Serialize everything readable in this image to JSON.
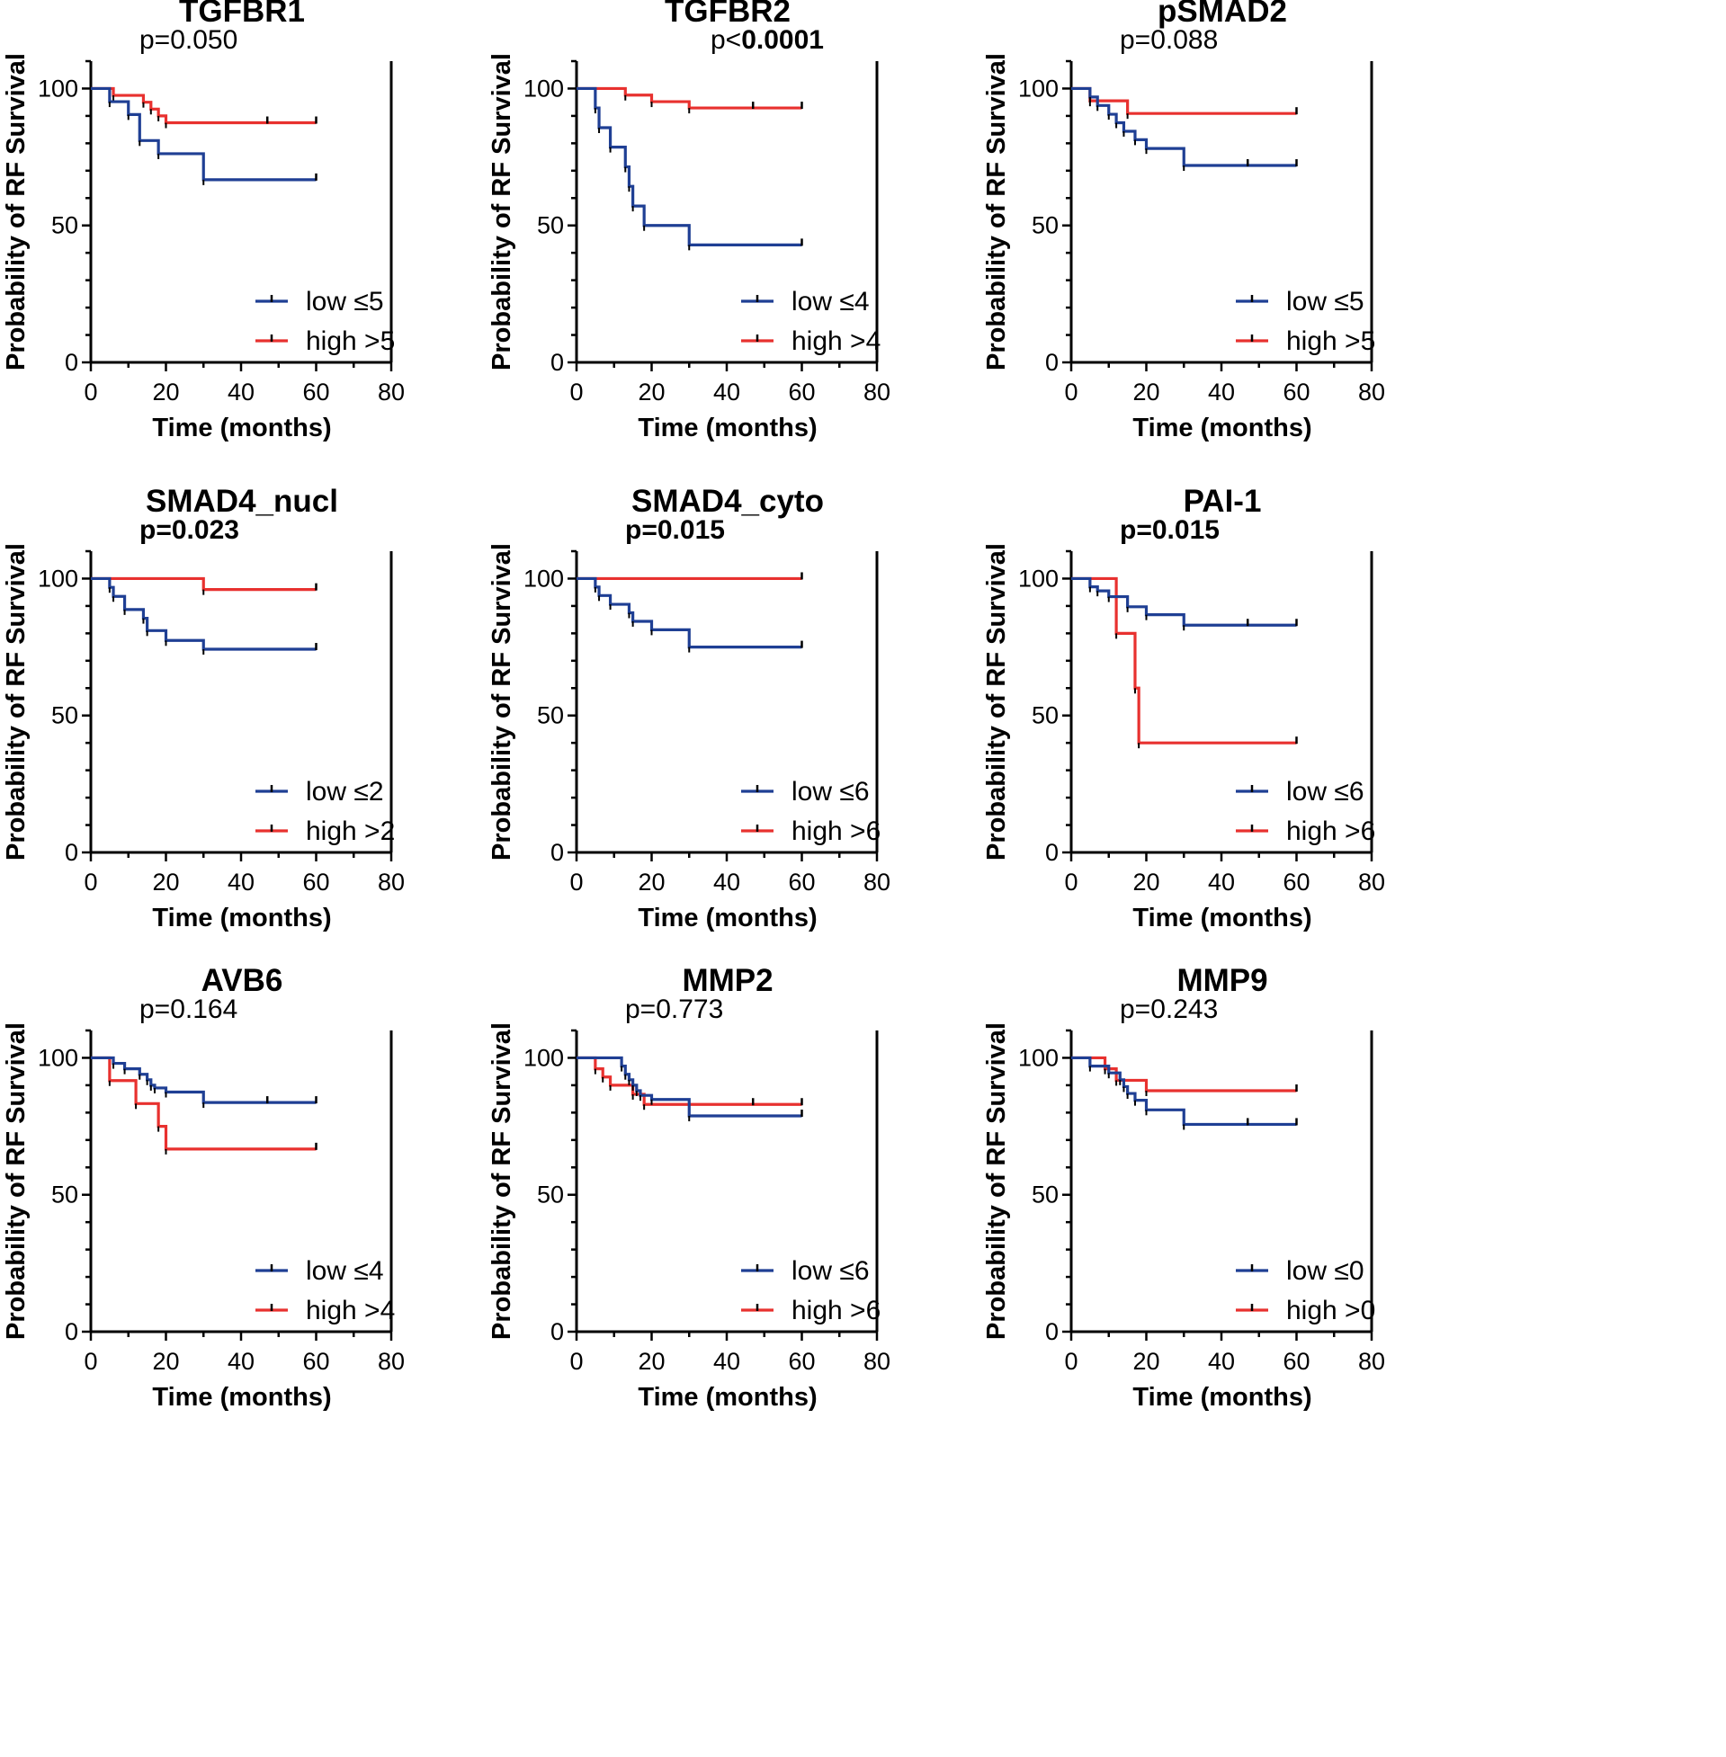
{
  "figure": {
    "x_axis_label": "Time (months)",
    "y_axis_label": "Probability of RF Survival"
  },
  "colors": {
    "low": "#1f3f94",
    "high": "#e8312f",
    "axis": "#000000"
  },
  "chart_data": [
    {
      "type": "line",
      "subtype": "kaplan-meier",
      "title": "TGFBR1",
      "pvalue": {
        "prefix": "p=",
        "value": "0.050",
        "bold": false
      },
      "xlabel": "Time (months)",
      "ylabel": "Probability of RF Survival",
      "xlim": [
        0,
        80
      ],
      "ylim": [
        0,
        110
      ],
      "xticks": [
        0,
        20,
        40,
        60,
        80
      ],
      "yticks": [
        0,
        50,
        100
      ],
      "series": [
        {
          "name": "low ≤5",
          "color": "#1f3f94",
          "x": [
            0,
            5,
            10,
            13,
            18,
            30,
            60
          ],
          "y": [
            100,
            95.2,
            90.5,
            81,
            76.2,
            66.7,
            66.7
          ],
          "censored": [
            60
          ]
        },
        {
          "name": "high >5",
          "color": "#e8312f",
          "x": [
            0,
            6,
            14,
            16,
            18,
            20,
            60
          ],
          "y": [
            100,
            97.5,
            95,
            92.5,
            90,
            87.5,
            87.5
          ],
          "censored": [
            47,
            60
          ]
        }
      ]
    },
    {
      "type": "line",
      "subtype": "kaplan-meier",
      "title": "TGFBR2",
      "pvalue": {
        "prefix": "p<",
        "value": "0.0001",
        "bold": true
      },
      "xlabel": "Time (months)",
      "ylabel": "Probability of RF Survival",
      "xlim": [
        0,
        80
      ],
      "ylim": [
        0,
        110
      ],
      "xticks": [
        0,
        20,
        40,
        60,
        80
      ],
      "yticks": [
        0,
        50,
        100
      ],
      "series": [
        {
          "name": "low ≤4",
          "color": "#1f3f94",
          "x": [
            0,
            5,
            6,
            9,
            13,
            14,
            15,
            18,
            30,
            60
          ],
          "y": [
            100,
            92.9,
            85.7,
            78.6,
            71.4,
            64.3,
            57.1,
            50,
            42.9,
            42.9
          ],
          "censored": [
            60
          ]
        },
        {
          "name": "high >4",
          "color": "#e8312f",
          "x": [
            0,
            13,
            20,
            30,
            60
          ],
          "y": [
            100,
            97.6,
            95.2,
            92.9,
            92.9
          ],
          "censored": [
            47,
            60
          ]
        }
      ]
    },
    {
      "type": "line",
      "subtype": "kaplan-meier",
      "title": "pSMAD2",
      "pvalue": {
        "prefix": "p=",
        "value": "0.088",
        "bold": false
      },
      "xlabel": "Time (months)",
      "ylabel": "Probability of RF Survival",
      "xlim": [
        0,
        80
      ],
      "ylim": [
        0,
        110
      ],
      "xticks": [
        0,
        20,
        40,
        60,
        80
      ],
      "yticks": [
        0,
        50,
        100
      ],
      "series": [
        {
          "name": "low ≤5",
          "color": "#1f3f94",
          "x": [
            0,
            5,
            7,
            10,
            12,
            14,
            17,
            20,
            30,
            60
          ],
          "y": [
            100,
            96.9,
            93.8,
            90.6,
            87.5,
            84.4,
            81.3,
            78.1,
            71.9,
            71.9
          ],
          "censored": [
            47,
            60
          ]
        },
        {
          "name": "high >5",
          "color": "#e8312f",
          "x": [
            0,
            5,
            15,
            60
          ],
          "y": [
            100,
            95.5,
            90.9,
            90.9
          ],
          "censored": [
            60
          ]
        }
      ]
    },
    {
      "type": "line",
      "subtype": "kaplan-meier",
      "title": "SMAD4_nucl",
      "pvalue": {
        "prefix": "p=",
        "value": "0.023",
        "bold": true
      },
      "xlabel": "Time (months)",
      "ylabel": "Probability of RF Survival",
      "xlim": [
        0,
        80
      ],
      "ylim": [
        0,
        110
      ],
      "xticks": [
        0,
        20,
        40,
        60,
        80
      ],
      "yticks": [
        0,
        50,
        100
      ],
      "series": [
        {
          "name": "low ≤2",
          "color": "#1f3f94",
          "x": [
            0,
            5,
            6,
            9,
            14,
            15,
            20,
            30,
            60
          ],
          "y": [
            100,
            96.8,
            93.5,
            88.7,
            85.5,
            81,
            77.4,
            74.2,
            74.2
          ],
          "censored": [
            60
          ]
        },
        {
          "name": "high >2",
          "color": "#e8312f",
          "x": [
            0,
            30,
            60
          ],
          "y": [
            100,
            96,
            96
          ],
          "censored": [
            60
          ]
        }
      ]
    },
    {
      "type": "line",
      "subtype": "kaplan-meier",
      "title": "SMAD4_cyto",
      "pvalue": {
        "prefix": "p=",
        "value": "0.015",
        "bold": true
      },
      "xlabel": "Time (months)",
      "ylabel": "Probability of RF Survival",
      "xlim": [
        0,
        80
      ],
      "ylim": [
        0,
        110
      ],
      "xticks": [
        0,
        20,
        40,
        60,
        80
      ],
      "yticks": [
        0,
        50,
        100
      ],
      "series": [
        {
          "name": "low ≤6",
          "color": "#1f3f94",
          "x": [
            0,
            5,
            6,
            9,
            14,
            15,
            20,
            30,
            60
          ],
          "y": [
            100,
            96.9,
            93.8,
            90.6,
            87.5,
            84.4,
            81.3,
            75,
            75
          ],
          "censored": [
            60
          ]
        },
        {
          "name": "high >6",
          "color": "#e8312f",
          "x": [
            0,
            60
          ],
          "y": [
            100,
            100
          ],
          "censored": [
            60
          ]
        }
      ]
    },
    {
      "type": "line",
      "subtype": "kaplan-meier",
      "title": "PAI-1",
      "pvalue": {
        "prefix": "p=",
        "value": "0.015",
        "bold": true
      },
      "xlabel": "Time (months)",
      "ylabel": "Probability of RF Survival",
      "xlim": [
        0,
        80
      ],
      "ylim": [
        0,
        110
      ],
      "xticks": [
        0,
        20,
        40,
        60,
        80
      ],
      "yticks": [
        0,
        50,
        100
      ],
      "series": [
        {
          "name": "low ≤6",
          "color": "#1f3f94",
          "x": [
            0,
            5,
            7,
            10,
            15,
            20,
            30,
            60
          ],
          "y": [
            100,
            97,
            95.5,
            93.4,
            89.7,
            86.8,
            83,
            83
          ],
          "censored": [
            47,
            60
          ]
        },
        {
          "name": "high >6",
          "color": "#e8312f",
          "x": [
            0,
            12,
            17,
            18,
            60
          ],
          "y": [
            100,
            80,
            60,
            40,
            40
          ],
          "censored": [
            60
          ]
        }
      ]
    },
    {
      "type": "line",
      "subtype": "kaplan-meier",
      "title": "AVB6",
      "pvalue": {
        "prefix": "p=",
        "value": "0.164",
        "bold": false
      },
      "xlabel": "Time (months)",
      "ylabel": "Probability of RF Survival",
      "xlim": [
        0,
        80
      ],
      "ylim": [
        0,
        110
      ],
      "xticks": [
        0,
        20,
        40,
        60,
        80
      ],
      "yticks": [
        0,
        50,
        100
      ],
      "series": [
        {
          "name": "low ≤4",
          "color": "#1f3f94",
          "x": [
            0,
            6,
            9,
            13,
            15,
            16,
            17,
            20,
            30,
            60
          ],
          "y": [
            100,
            98,
            96,
            94,
            92,
            90,
            89,
            87.5,
            83.7,
            83.7
          ],
          "censored": [
            47,
            60
          ]
        },
        {
          "name": "high >4",
          "color": "#e8312f",
          "x": [
            0,
            5,
            12,
            18,
            20,
            60
          ],
          "y": [
            100,
            91.7,
            83.3,
            75,
            66.7,
            66.7
          ],
          "censored": [
            60
          ]
        }
      ]
    },
    {
      "type": "line",
      "subtype": "kaplan-meier",
      "title": "MMP2",
      "pvalue": {
        "prefix": "p=",
        "value": "0.773",
        "bold": false
      },
      "xlabel": "Time (months)",
      "ylabel": "Probability of RF Survival",
      "xlim": [
        0,
        80
      ],
      "ylim": [
        0,
        110
      ],
      "xticks": [
        0,
        20,
        40,
        60,
        80
      ],
      "yticks": [
        0,
        50,
        100
      ],
      "series": [
        {
          "name": "low ≤6",
          "color": "#1f3f94",
          "x": [
            0,
            12,
            13,
            14,
            15,
            16,
            17,
            20,
            30,
            60
          ],
          "y": [
            100,
            97,
            94,
            92,
            90,
            88,
            86.3,
            84.8,
            78.8,
            78.8
          ],
          "censored": [
            60
          ]
        },
        {
          "name": "high >6",
          "color": "#e8312f",
          "x": [
            0,
            5,
            7,
            9,
            15,
            18,
            60
          ],
          "y": [
            100,
            96,
            93,
            90,
            86.7,
            83,
            83
          ],
          "censored": [
            47,
            60
          ]
        }
      ]
    },
    {
      "type": "line",
      "subtype": "kaplan-meier",
      "title": "MMP9",
      "pvalue": {
        "prefix": "p=",
        "value": "0.243",
        "bold": false
      },
      "xlabel": "Time (months)",
      "ylabel": "Probability of RF Survival",
      "xlim": [
        0,
        80
      ],
      "ylim": [
        0,
        110
      ],
      "xticks": [
        0,
        20,
        40,
        60,
        80
      ],
      "yticks": [
        0,
        50,
        100
      ],
      "series": [
        {
          "name": "low ≤0",
          "color": "#1f3f94",
          "x": [
            0,
            5,
            10,
            13,
            14,
            15,
            17,
            20,
            30,
            60
          ],
          "y": [
            100,
            97,
            94.5,
            92,
            89.5,
            87,
            84.5,
            81,
            75.7,
            75.7
          ],
          "censored": [
            47,
            60
          ]
        },
        {
          "name": "high >0",
          "color": "#e8312f",
          "x": [
            0,
            9,
            12,
            20,
            60
          ],
          "y": [
            100,
            96,
            91.8,
            88,
            88
          ],
          "censored": [
            60
          ]
        }
      ]
    }
  ]
}
